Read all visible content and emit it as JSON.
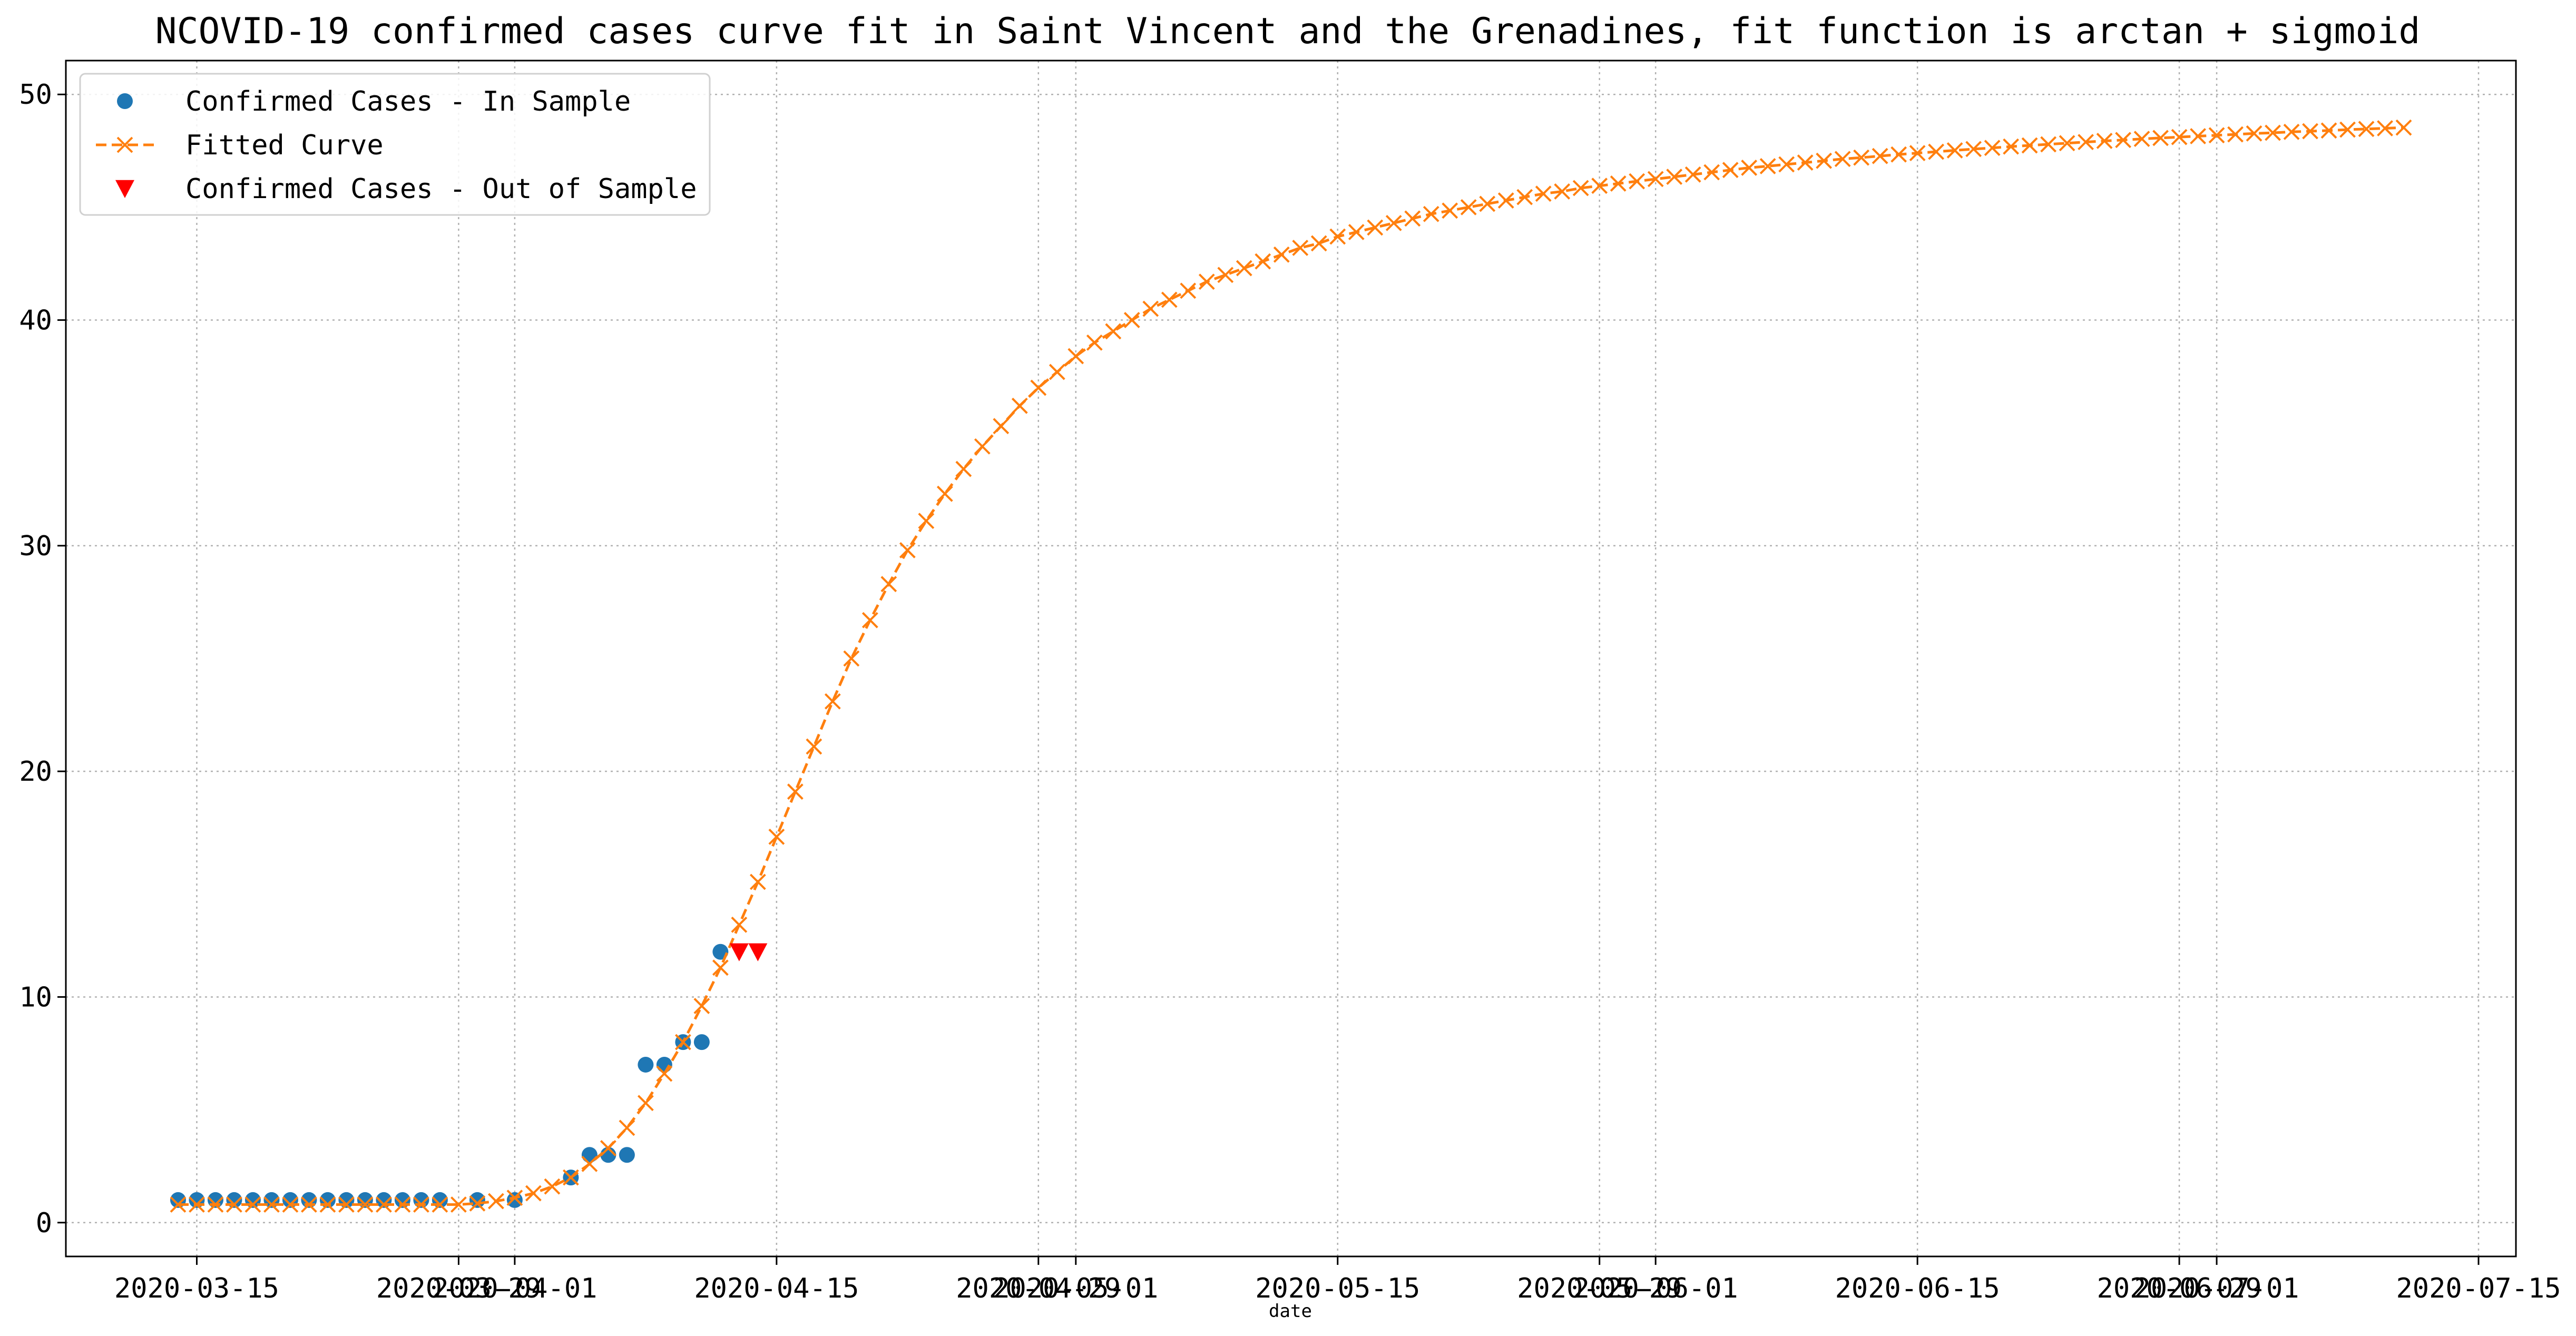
{
  "chart_data": {
    "type": "scatter",
    "title": "NCOVID-19 confirmed cases curve fit in Saint Vincent and the Grenadines, fit function is arctan + sigmoid",
    "xlabel": "date",
    "ylabel": "",
    "xlim": [
      "2020-03-08",
      "2020-07-17"
    ],
    "ylim": [
      -1.5,
      51.5
    ],
    "grid": true,
    "legend_placement": "upper-left",
    "x_ticks": [
      "2020-03-15",
      "2020-03-29",
      "2020-04-01",
      "2020-04-15",
      "2020-04-29",
      "2020-05-01",
      "2020-05-15",
      "2020-05-29",
      "2020-06-01",
      "2020-06-15",
      "2020-06-29",
      "2020-07-01",
      "2020-07-15"
    ],
    "y_ticks": [
      0,
      10,
      20,
      30,
      40,
      50
    ],
    "legend": [
      {
        "label": "Confirmed Cases - In Sample",
        "marker": "circle",
        "color": "#1f77b4"
      },
      {
        "label": "Fitted Curve",
        "marker": "x-dashed",
        "color": "#ff7f0e"
      },
      {
        "label": "Confirmed Cases - Out of Sample",
        "marker": "triangle-down",
        "color": "#ff0000"
      }
    ],
    "series": [
      {
        "name": "Confirmed Cases - In Sample",
        "color": "#1f77b4",
        "marker": "circle",
        "points": [
          {
            "x": "2020-03-14",
            "y": 1
          },
          {
            "x": "2020-03-15",
            "y": 1
          },
          {
            "x": "2020-03-16",
            "y": 1
          },
          {
            "x": "2020-03-17",
            "y": 1
          },
          {
            "x": "2020-03-18",
            "y": 1
          },
          {
            "x": "2020-03-19",
            "y": 1
          },
          {
            "x": "2020-03-20",
            "y": 1
          },
          {
            "x": "2020-03-21",
            "y": 1
          },
          {
            "x": "2020-03-22",
            "y": 1
          },
          {
            "x": "2020-03-23",
            "y": 1
          },
          {
            "x": "2020-03-24",
            "y": 1
          },
          {
            "x": "2020-03-25",
            "y": 1
          },
          {
            "x": "2020-03-26",
            "y": 1
          },
          {
            "x": "2020-03-27",
            "y": 1
          },
          {
            "x": "2020-03-28",
            "y": 1
          },
          {
            "x": "2020-03-30",
            "y": 1
          },
          {
            "x": "2020-04-01",
            "y": 1
          },
          {
            "x": "2020-04-04",
            "y": 2
          },
          {
            "x": "2020-04-05",
            "y": 3
          },
          {
            "x": "2020-04-06",
            "y": 3
          },
          {
            "x": "2020-04-07",
            "y": 3
          },
          {
            "x": "2020-04-08",
            "y": 7
          },
          {
            "x": "2020-04-09",
            "y": 7
          },
          {
            "x": "2020-04-10",
            "y": 8
          },
          {
            "x": "2020-04-11",
            "y": 8
          },
          {
            "x": "2020-04-12",
            "y": 12
          }
        ]
      },
      {
        "name": "Fitted Curve",
        "color": "#ff7f0e",
        "marker": "x",
        "line": "dashed",
        "points": [
          {
            "x": "2020-03-14",
            "y": 0.8
          },
          {
            "x": "2020-03-15",
            "y": 0.8
          },
          {
            "x": "2020-03-16",
            "y": 0.8
          },
          {
            "x": "2020-03-17",
            "y": 0.8
          },
          {
            "x": "2020-03-18",
            "y": 0.8
          },
          {
            "x": "2020-03-19",
            "y": 0.8
          },
          {
            "x": "2020-03-20",
            "y": 0.8
          },
          {
            "x": "2020-03-21",
            "y": 0.8
          },
          {
            "x": "2020-03-22",
            "y": 0.8
          },
          {
            "x": "2020-03-23",
            "y": 0.8
          },
          {
            "x": "2020-03-24",
            "y": 0.8
          },
          {
            "x": "2020-03-25",
            "y": 0.8
          },
          {
            "x": "2020-03-26",
            "y": 0.8
          },
          {
            "x": "2020-03-27",
            "y": 0.8
          },
          {
            "x": "2020-03-28",
            "y": 0.8
          },
          {
            "x": "2020-03-29",
            "y": 0.8
          },
          {
            "x": "2020-03-30",
            "y": 0.85
          },
          {
            "x": "2020-03-31",
            "y": 0.95
          },
          {
            "x": "2020-04-01",
            "y": 1.1
          },
          {
            "x": "2020-04-02",
            "y": 1.3
          },
          {
            "x": "2020-04-03",
            "y": 1.6
          },
          {
            "x": "2020-04-04",
            "y": 2.0
          },
          {
            "x": "2020-04-05",
            "y": 2.6
          },
          {
            "x": "2020-04-06",
            "y": 3.3
          },
          {
            "x": "2020-04-07",
            "y": 4.2
          },
          {
            "x": "2020-04-08",
            "y": 5.3
          },
          {
            "x": "2020-04-09",
            "y": 6.6
          },
          {
            "x": "2020-04-10",
            "y": 8.0
          },
          {
            "x": "2020-04-11",
            "y": 9.6
          },
          {
            "x": "2020-04-12",
            "y": 11.3
          },
          {
            "x": "2020-04-13",
            "y": 13.2
          },
          {
            "x": "2020-04-14",
            "y": 15.1
          },
          {
            "x": "2020-04-15",
            "y": 17.1
          },
          {
            "x": "2020-04-16",
            "y": 19.1
          },
          {
            "x": "2020-04-17",
            "y": 21.1
          },
          {
            "x": "2020-04-18",
            "y": 23.1
          },
          {
            "x": "2020-04-19",
            "y": 25.0
          },
          {
            "x": "2020-04-20",
            "y": 26.7
          },
          {
            "x": "2020-04-21",
            "y": 28.3
          },
          {
            "x": "2020-04-22",
            "y": 29.8
          },
          {
            "x": "2020-04-23",
            "y": 31.1
          },
          {
            "x": "2020-04-24",
            "y": 32.3
          },
          {
            "x": "2020-04-25",
            "y": 33.4
          },
          {
            "x": "2020-04-26",
            "y": 34.4
          },
          {
            "x": "2020-04-27",
            "y": 35.3
          },
          {
            "x": "2020-04-28",
            "y": 36.2
          },
          {
            "x": "2020-04-29",
            "y": 37.0
          },
          {
            "x": "2020-04-30",
            "y": 37.7
          },
          {
            "x": "2020-05-01",
            "y": 38.4
          },
          {
            "x": "2020-05-02",
            "y": 39.0
          },
          {
            "x": "2020-05-03",
            "y": 39.5
          },
          {
            "x": "2020-05-04",
            "y": 40.0
          },
          {
            "x": "2020-05-05",
            "y": 40.5
          },
          {
            "x": "2020-05-06",
            "y": 40.9
          },
          {
            "x": "2020-05-07",
            "y": 41.3
          },
          {
            "x": "2020-05-08",
            "y": 41.7
          },
          {
            "x": "2020-05-09",
            "y": 42.0
          },
          {
            "x": "2020-05-10",
            "y": 42.3
          },
          {
            "x": "2020-05-11",
            "y": 42.6
          },
          {
            "x": "2020-05-12",
            "y": 42.9
          },
          {
            "x": "2020-05-13",
            "y": 43.2
          },
          {
            "x": "2020-05-14",
            "y": 43.4
          },
          {
            "x": "2020-05-15",
            "y": 43.7
          },
          {
            "x": "2020-05-16",
            "y": 43.9
          },
          {
            "x": "2020-05-17",
            "y": 44.1
          },
          {
            "x": "2020-05-18",
            "y": 44.3
          },
          {
            "x": "2020-05-19",
            "y": 44.5
          },
          {
            "x": "2020-05-20",
            "y": 44.7
          },
          {
            "x": "2020-05-21",
            "y": 44.85
          },
          {
            "x": "2020-05-22",
            "y": 45.0
          },
          {
            "x": "2020-05-23",
            "y": 45.15
          },
          {
            "x": "2020-05-24",
            "y": 45.3
          },
          {
            "x": "2020-05-25",
            "y": 45.45
          },
          {
            "x": "2020-05-26",
            "y": 45.6
          },
          {
            "x": "2020-05-27",
            "y": 45.7
          },
          {
            "x": "2020-05-28",
            "y": 45.85
          },
          {
            "x": "2020-05-29",
            "y": 45.95
          },
          {
            "x": "2020-05-30",
            "y": 46.05
          },
          {
            "x": "2020-05-31",
            "y": 46.15
          },
          {
            "x": "2020-06-01",
            "y": 46.25
          },
          {
            "x": "2020-06-02",
            "y": 46.35
          },
          {
            "x": "2020-06-03",
            "y": 46.45
          },
          {
            "x": "2020-06-04",
            "y": 46.55
          },
          {
            "x": "2020-06-05",
            "y": 46.65
          },
          {
            "x": "2020-06-06",
            "y": 46.75
          },
          {
            "x": "2020-06-07",
            "y": 46.82
          },
          {
            "x": "2020-06-08",
            "y": 46.9
          },
          {
            "x": "2020-06-09",
            "y": 46.98
          },
          {
            "x": "2020-06-10",
            "y": 47.06
          },
          {
            "x": "2020-06-11",
            "y": 47.14
          },
          {
            "x": "2020-06-12",
            "y": 47.2
          },
          {
            "x": "2020-06-13",
            "y": 47.27
          },
          {
            "x": "2020-06-14",
            "y": 47.34
          },
          {
            "x": "2020-06-15",
            "y": 47.4
          },
          {
            "x": "2020-06-16",
            "y": 47.46
          },
          {
            "x": "2020-06-17",
            "y": 47.52
          },
          {
            "x": "2020-06-18",
            "y": 47.58
          },
          {
            "x": "2020-06-19",
            "y": 47.63
          },
          {
            "x": "2020-06-20",
            "y": 47.69
          },
          {
            "x": "2020-06-21",
            "y": 47.74
          },
          {
            "x": "2020-06-22",
            "y": 47.79
          },
          {
            "x": "2020-06-23",
            "y": 47.84
          },
          {
            "x": "2020-06-24",
            "y": 47.89
          },
          {
            "x": "2020-06-25",
            "y": 47.94
          },
          {
            "x": "2020-06-26",
            "y": 47.98
          },
          {
            "x": "2020-06-27",
            "y": 48.03
          },
          {
            "x": "2020-06-28",
            "y": 48.07
          },
          {
            "x": "2020-06-29",
            "y": 48.11
          },
          {
            "x": "2020-06-30",
            "y": 48.15
          },
          {
            "x": "2020-07-01",
            "y": 48.19
          },
          {
            "x": "2020-07-02",
            "y": 48.23
          },
          {
            "x": "2020-07-03",
            "y": 48.27
          },
          {
            "x": "2020-07-04",
            "y": 48.3
          },
          {
            "x": "2020-07-05",
            "y": 48.34
          },
          {
            "x": "2020-07-06",
            "y": 48.37
          },
          {
            "x": "2020-07-07",
            "y": 48.4
          },
          {
            "x": "2020-07-08",
            "y": 48.44
          },
          {
            "x": "2020-07-09",
            "y": 48.47
          },
          {
            "x": "2020-07-10",
            "y": 48.5
          },
          {
            "x": "2020-07-11",
            "y": 48.53
          }
        ]
      },
      {
        "name": "Confirmed Cases - Out of Sample",
        "color": "#ff0000",
        "marker": "triangle-down",
        "points": [
          {
            "x": "2020-04-13",
            "y": 12
          },
          {
            "x": "2020-04-14",
            "y": 12
          }
        ]
      }
    ]
  }
}
